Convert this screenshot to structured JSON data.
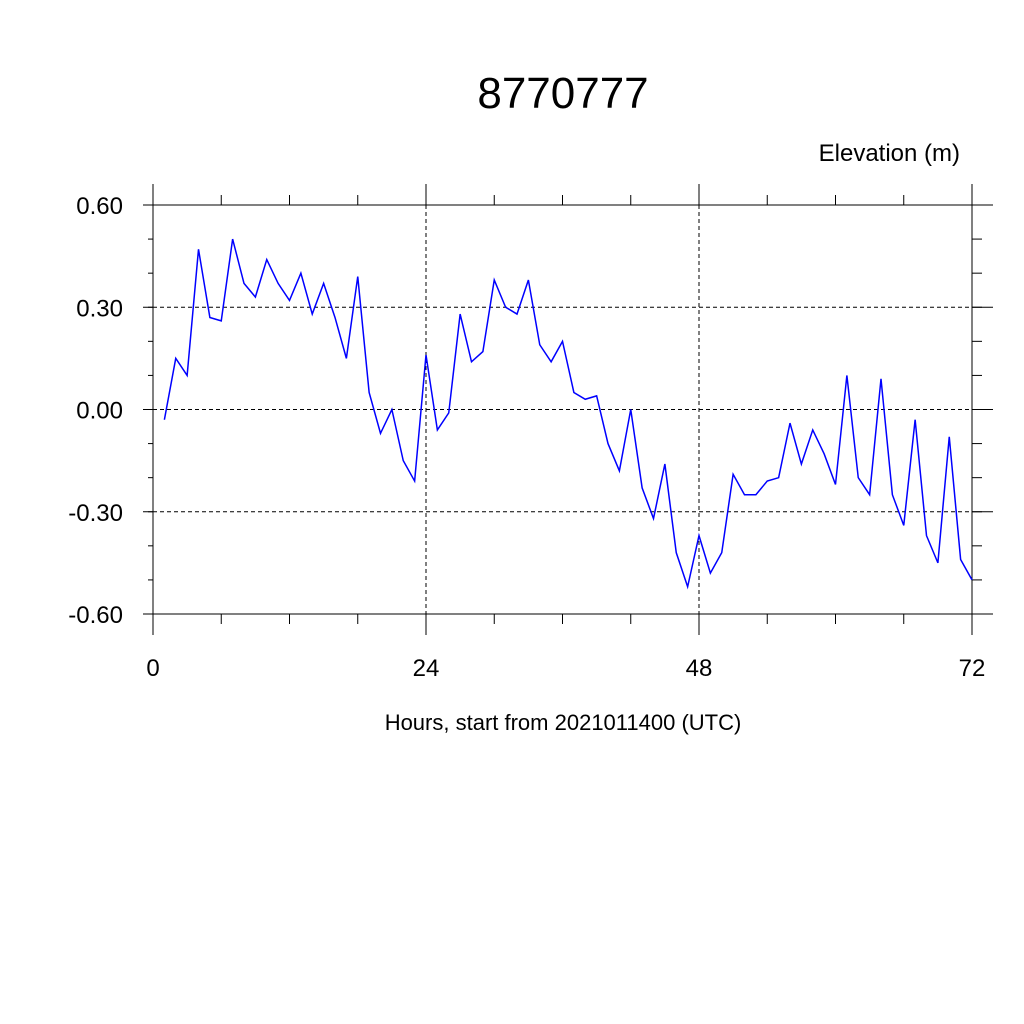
{
  "chart_data": {
    "type": "line",
    "title": "8770777",
    "subtitle": "Elevation (m)",
    "xlabel": "Hours, start from 2021011400 (UTC)",
    "ylabel": "",
    "xlim": [
      0,
      72
    ],
    "ylim": [
      -0.6,
      0.6
    ],
    "x_ticks": [
      0,
      24,
      48,
      72
    ],
    "x_tick_labels": [
      "0",
      "24",
      "48",
      "72"
    ],
    "y_ticks": [
      0.6,
      0.3,
      0.0,
      -0.3,
      -0.6
    ],
    "y_tick_labels": [
      "0.60",
      "0.30",
      "0.00",
      "-0.30",
      "-0.60"
    ],
    "grid": true,
    "series_color": "#0000ff",
    "series": [
      {
        "x": [
          1,
          2,
          3,
          4,
          5,
          6,
          7,
          8,
          9,
          10,
          11,
          12,
          13,
          14,
          15,
          16,
          17,
          18,
          19,
          20,
          21,
          22,
          23,
          24,
          25,
          26,
          27,
          28,
          29,
          30,
          31,
          32,
          33,
          34,
          35,
          36,
          37,
          38,
          39,
          40,
          41,
          42,
          43,
          44,
          45,
          46,
          47,
          48,
          49,
          50,
          51,
          52,
          53,
          54,
          55,
          56,
          57,
          58,
          59,
          60,
          61,
          62,
          63,
          64,
          65,
          66,
          67,
          68,
          69,
          70,
          71,
          72
        ],
        "values": [
          -0.03,
          0.15,
          0.1,
          0.47,
          0.27,
          0.26,
          0.5,
          0.37,
          0.33,
          0.44,
          0.37,
          0.32,
          0.4,
          0.28,
          0.37,
          0.27,
          0.15,
          0.39,
          0.05,
          -0.07,
          0.0,
          -0.15,
          -0.21,
          0.16,
          -0.06,
          -0.01,
          0.28,
          0.14,
          0.17,
          0.38,
          0.3,
          0.28,
          0.38,
          0.19,
          0.14,
          0.2,
          0.05,
          0.03,
          0.04,
          -0.1,
          -0.18,
          0.0,
          -0.23,
          -0.32,
          -0.16,
          -0.42,
          -0.52,
          -0.37,
          -0.48,
          -0.42,
          -0.19,
          -0.25,
          -0.25,
          -0.21,
          -0.2,
          -0.04,
          -0.16,
          -0.06,
          -0.13,
          -0.22,
          0.1,
          -0.2,
          -0.25,
          0.09,
          -0.25,
          -0.34,
          -0.03,
          -0.37,
          -0.45,
          -0.08,
          -0.44,
          -0.5
        ]
      }
    ]
  }
}
